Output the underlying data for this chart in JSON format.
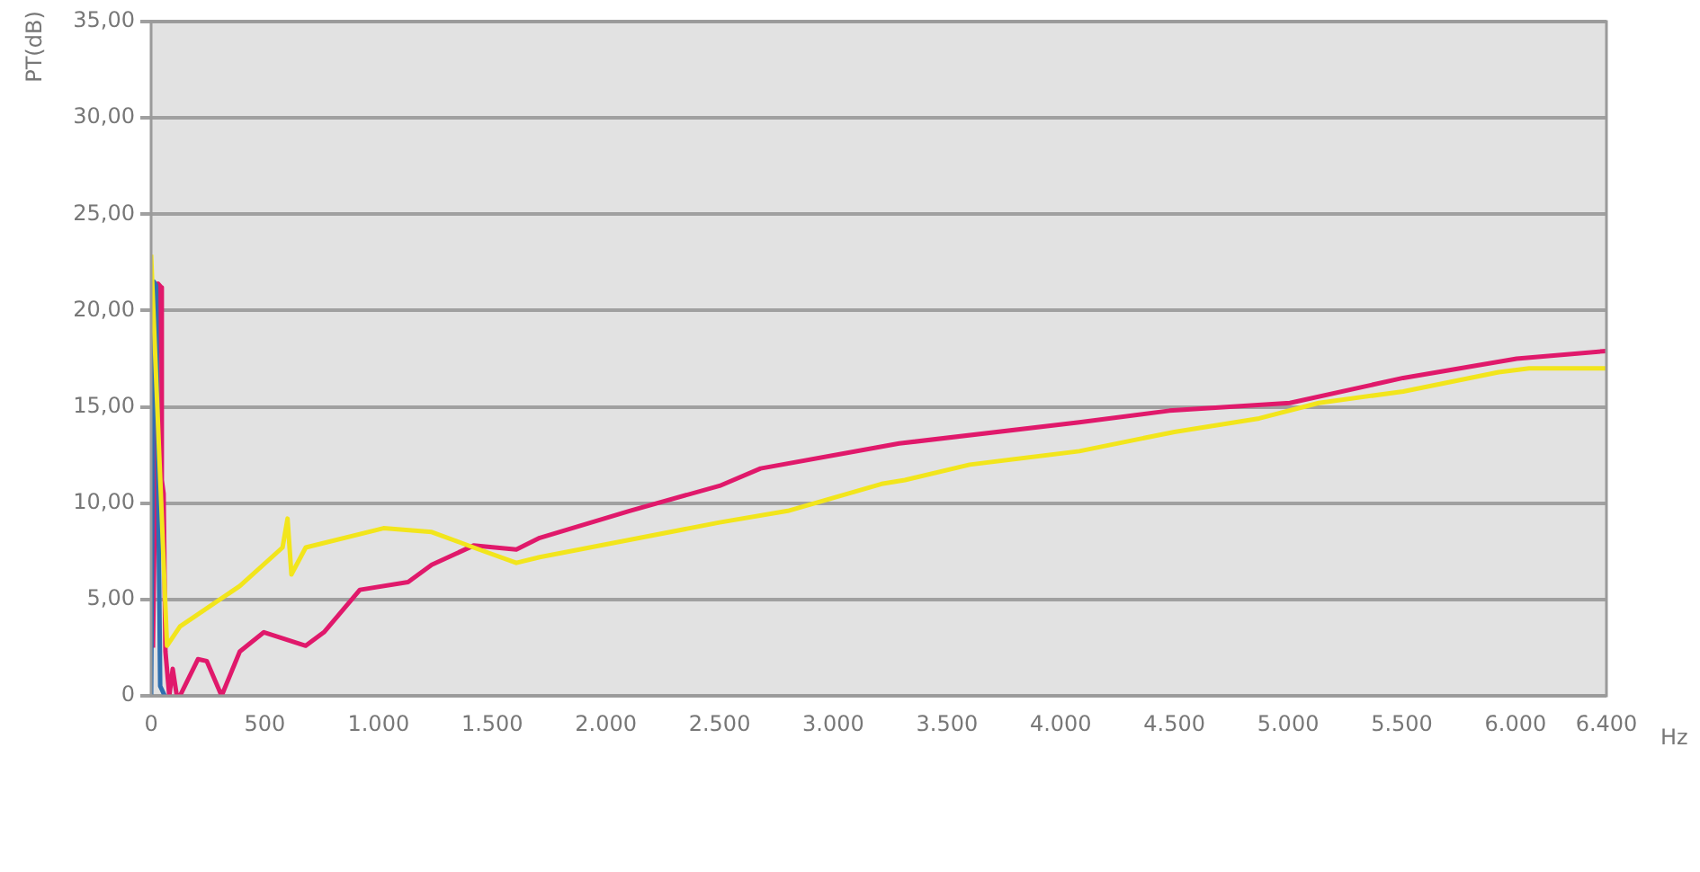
{
  "chart_data": {
    "type": "line",
    "ylabel": "PT(dB)",
    "xlabel": "Hz",
    "xlim": [
      0,
      6400
    ],
    "xticks": [
      0,
      500,
      {
        "value": 1000,
        "label": "1.000"
      },
      {
        "value": 1500,
        "label": "1.500"
      },
      {
        "value": 2000,
        "label": "2.000"
      },
      {
        "value": 2500,
        "label": "2.500"
      },
      {
        "value": 3000,
        "label": "3.000"
      },
      {
        "value": 3500,
        "label": "3.500"
      },
      {
        "value": 4000,
        "label": "4.000"
      },
      {
        "value": 4500,
        "label": "4.500"
      },
      {
        "value": 5000,
        "label": "5.000"
      },
      {
        "value": 5500,
        "label": "5.500"
      },
      {
        "value": 6000,
        "label": "6.000"
      },
      {
        "value": 6400,
        "label": "6.400"
      }
    ],
    "ylim": [
      0,
      35
    ],
    "yticks": [
      0,
      {
        "value": 5,
        "label": "5,00"
      },
      {
        "value": 10,
        "label": "10,00"
      },
      {
        "value": 15,
        "label": "15,00"
      },
      {
        "value": 20,
        "label": "20,00"
      },
      {
        "value": 25,
        "label": "25,00"
      },
      {
        "value": 30,
        "label": "30,00"
      },
      {
        "value": 35,
        "label": "35,00"
      }
    ],
    "grid": "y",
    "legend": false,
    "marker": "none",
    "line_style": "solid",
    "series": [
      {
        "color": "#f2e51c",
        "x": [
          0,
          70,
          127,
          390,
          578,
          600,
          617,
          680,
          1022,
          1234,
          1418,
          1606,
          1709,
          2104,
          2500,
          2800,
          3212,
          3315,
          3600,
          4082,
          4500,
          4873,
          5135,
          5506,
          5926,
          6060,
          6400
        ],
        "values": [
          22.9,
          2.6,
          3.6,
          5.7,
          7.7,
          9.2,
          6.3,
          7.7,
          8.7,
          8.5,
          7.7,
          6.9,
          7.2,
          8.1,
          9.0,
          9.6,
          11.0,
          11.2,
          12.0,
          12.7,
          13.7,
          14.4,
          15.2,
          15.8,
          16.8,
          17.0,
          17.0
        ]
      },
      {
        "color": "#2f6fb0",
        "x": [
          0,
          12,
          22,
          40,
          60
        ],
        "values": [
          0,
          21.5,
          21.3,
          0.5,
          0
        ]
      },
      {
        "color": "#e0196b",
        "x": [
          8,
          30,
          45,
          47,
          55,
          63,
          80,
          95,
          113,
          127,
          206,
          245,
          310,
          390,
          496,
          680,
          760,
          918,
          1130,
          1234,
          1418,
          1606,
          1709,
          2104,
          2500,
          2680,
          3290,
          4082,
          4478,
          5008,
          5506,
          6005,
          6400
        ],
        "values": [
          2.5,
          21.4,
          21.2,
          11.2,
          10.5,
          2.3,
          0,
          1.4,
          0,
          0,
          1.9,
          1.8,
          0,
          2.3,
          3.3,
          2.6,
          3.3,
          5.5,
          5.9,
          6.8,
          7.8,
          7.6,
          8.2,
          9.6,
          10.9,
          11.8,
          13.1,
          14.2,
          14.8,
          15.2,
          16.5,
          17.5,
          17.9
        ]
      }
    ]
  }
}
